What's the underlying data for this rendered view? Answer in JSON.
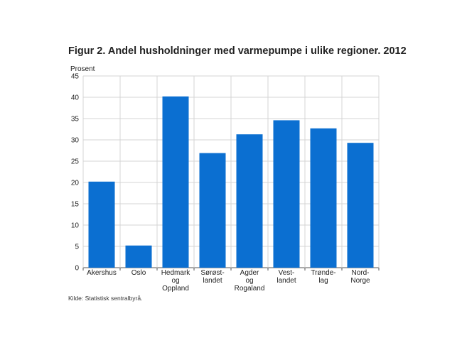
{
  "chart_data": {
    "type": "bar",
    "title": "Figur 2. Andel husholdninger med varmepumpe i ulike regioner. 2012",
    "ylabel": "Prosent",
    "xlabel": "",
    "source": "Kilde: Statistisk sentralbyrå.",
    "categories": [
      [
        "Akershus"
      ],
      [
        "Oslo"
      ],
      [
        "Hedmark",
        "og",
        "Oppland"
      ],
      [
        "Sørøst-",
        "landet"
      ],
      [
        "Agder",
        "og",
        "Rogaland"
      ],
      [
        "Vest-",
        "landet"
      ],
      [
        "Trønde-",
        "lag"
      ],
      [
        "Nord-",
        "Norge"
      ]
    ],
    "values": [
      20.2,
      5.2,
      40.2,
      26.9,
      31.3,
      34.6,
      32.7,
      29.3
    ],
    "ylim": [
      0,
      45
    ],
    "yticks": [
      0,
      5,
      10,
      15,
      20,
      25,
      30,
      35,
      40,
      45
    ],
    "grid": true,
    "bar_color": "#0b6fd1",
    "grid_color": "#d4d4d4"
  }
}
